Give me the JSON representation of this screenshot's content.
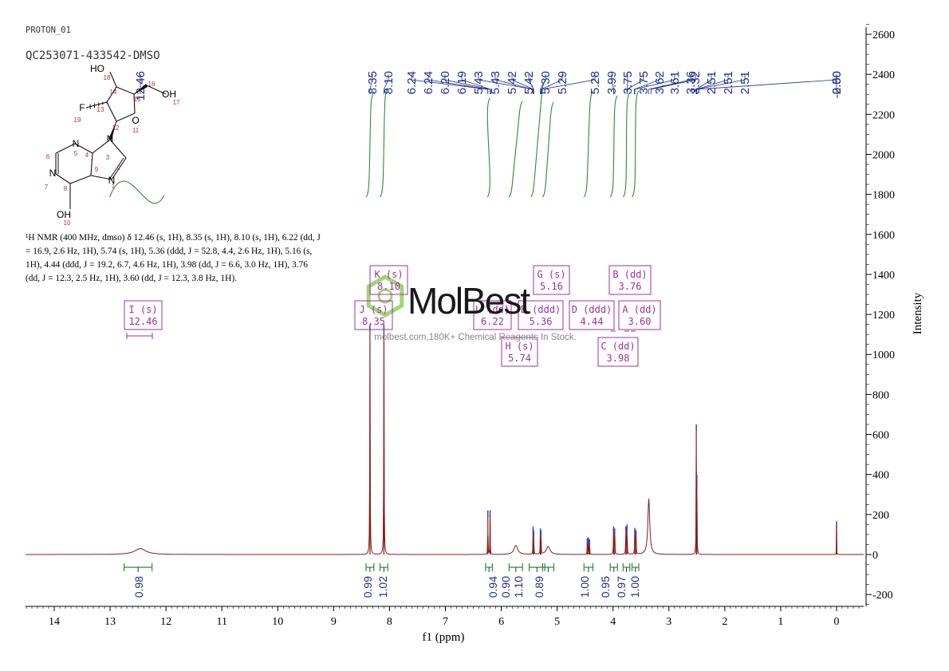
{
  "header": {
    "experiment": "PROTON_01",
    "sample": "QC253071-433542-DMSO"
  },
  "description": {
    "text": "¹H NMR (400 MHz, dmso) δ 12.46 (s, 1H), 8.35 (s, 1H), 8.10 (s, 1H), 6.22 (dd, J = 16.9, 2.6 Hz, 1H), 5.74 (s, 1H), 5.36 (ddd, J = 52.8, 4.4, 2.6 Hz, 1H), 5.16 (s, 1H), 4.44 (ddd, J = 19.2, 6.7, 4.6 Hz, 1H), 3.98 (dd, J = 6.6, 3.0 Hz, 1H), 3.76 (dd, J = 12.3, 2.5 Hz, 1H), 3.60 (dd, J = 12.3, 3.8 Hz, 1H)."
  },
  "watermark": {
    "brand": "MolBest",
    "tagline": "molbest.com,180K+ Chemical Reagents In Stock."
  },
  "molecule": {
    "atoms": [
      "N",
      "N",
      "N",
      "N",
      "F",
      "O",
      "HO",
      "OH",
      "OH"
    ],
    "numbers": [
      "1",
      "2",
      "3",
      "4",
      "5",
      "6",
      "7",
      "8",
      "9",
      "10",
      "11",
      "12",
      "13",
      "14",
      "15",
      "16",
      "17",
      "18",
      "19"
    ]
  },
  "colors": {
    "spectrum": "#8b1a1a",
    "integral": "#2e8b2e",
    "peak_label": "#1f2f8f",
    "multiplet": "#a030a0"
  },
  "chart_data": {
    "type": "line",
    "xlabel": "f1 (ppm)",
    "ylabel": "Intensity",
    "xlim": [
      14.5,
      -0.5
    ],
    "ylim": [
      -250,
      2650
    ],
    "x_reversed": true,
    "x_ticks": [
      "14",
      "13",
      "12",
      "11",
      "10",
      "9",
      "8",
      "7",
      "6",
      "5",
      "4",
      "3",
      "2",
      "1",
      "0"
    ],
    "y_ticks": [
      "-200",
      "0",
      "200",
      "400",
      "600",
      "800",
      "1000",
      "1200",
      "1400",
      "1600",
      "1800",
      "2000",
      "2200",
      "2400",
      "2600"
    ],
    "peak_labels": [
      "12.46",
      "8.35",
      "8.10",
      "6.24",
      "6.24",
      "6.20",
      "6.19",
      "5.43",
      "5.43",
      "5.42",
      "5.42",
      "5.30",
      "5.29",
      "5.28",
      "3.99",
      "3.75",
      "3.75",
      "3.62",
      "3.61",
      "3.36",
      "3.32",
      "2.51",
      "2.51",
      "2.51",
      "2.50",
      "-0.00"
    ],
    "peaks": [
      {
        "ppm": 12.46,
        "height": 30,
        "width": 0.12
      },
      {
        "ppm": 8.35,
        "height": 1150,
        "width": 0.004
      },
      {
        "ppm": 8.1,
        "height": 1150,
        "width": 0.004
      },
      {
        "ppm": 6.24,
        "height": 220,
        "width": 0.003
      },
      {
        "ppm": 6.2,
        "height": 220,
        "width": 0.003
      },
      {
        "ppm": 5.74,
        "height": 45,
        "width": 0.04
      },
      {
        "ppm": 5.43,
        "height": 130,
        "width": 0.003
      },
      {
        "ppm": 5.42,
        "height": 120,
        "width": 0.003
      },
      {
        "ppm": 5.3,
        "height": 130,
        "width": 0.003
      },
      {
        "ppm": 5.29,
        "height": 120,
        "width": 0.003
      },
      {
        "ppm": 5.16,
        "height": 40,
        "width": 0.04
      },
      {
        "ppm": 4.46,
        "height": 80,
        "width": 0.003
      },
      {
        "ppm": 4.44,
        "height": 85,
        "width": 0.003
      },
      {
        "ppm": 4.42,
        "height": 75,
        "width": 0.003
      },
      {
        "ppm": 3.99,
        "height": 140,
        "width": 0.004
      },
      {
        "ppm": 3.97,
        "height": 130,
        "width": 0.004
      },
      {
        "ppm": 3.77,
        "height": 140,
        "width": 0.004
      },
      {
        "ppm": 3.75,
        "height": 150,
        "width": 0.004
      },
      {
        "ppm": 3.61,
        "height": 130,
        "width": 0.004
      },
      {
        "ppm": 3.59,
        "height": 120,
        "width": 0.004
      },
      {
        "ppm": 3.36,
        "height": 280,
        "width": 0.02
      },
      {
        "ppm": 2.51,
        "height": 650,
        "width": 0.003
      },
      {
        "ppm": 2.5,
        "height": 400,
        "width": 0.003
      },
      {
        "ppm": 0.0,
        "height": 165,
        "width": 0.002
      }
    ],
    "integrals": [
      {
        "from": 12.75,
        "to": 12.25,
        "value": "0.98"
      },
      {
        "from": 8.42,
        "to": 8.28,
        "value": "0.99"
      },
      {
        "from": 8.17,
        "to": 8.03,
        "value": "1.02"
      },
      {
        "from": 6.28,
        "to": 6.16,
        "value": "0.94"
      },
      {
        "from": 5.86,
        "to": 5.62,
        "value": "0.90"
      },
      {
        "from": 5.5,
        "to": 5.22,
        "value": "1.10"
      },
      {
        "from": 5.26,
        "to": 5.06,
        "value": "0.89"
      },
      {
        "from": 4.52,
        "to": 4.36,
        "value": "1.00"
      },
      {
        "from": 4.05,
        "to": 3.92,
        "value": "0.95"
      },
      {
        "from": 3.82,
        "to": 3.7,
        "value": "0.97"
      },
      {
        "from": 3.66,
        "to": 3.54,
        "value": "1.00"
      }
    ],
    "multiplets": [
      {
        "id": "I",
        "mult": "s",
        "shift": "12.46"
      },
      {
        "id": "J",
        "mult": "s",
        "shift": "8.35"
      },
      {
        "id": "K",
        "mult": "s",
        "shift": "8.10"
      },
      {
        "id": "L",
        "mult": "dd",
        "shift": "6.22"
      },
      {
        "id": "H",
        "mult": "s",
        "shift": "5.74"
      },
      {
        "id": "E",
        "mult": "ddd",
        "shift": "5.36"
      },
      {
        "id": "G",
        "mult": "s",
        "shift": "5.16"
      },
      {
        "id": "D",
        "mult": "ddd",
        "shift": "4.44"
      },
      {
        "id": "C",
        "mult": "dd",
        "shift": "3.98"
      },
      {
        "id": "B",
        "mult": "dd",
        "shift": "3.76"
      },
      {
        "id": "A",
        "mult": "dd",
        "shift": "3.60"
      }
    ]
  }
}
